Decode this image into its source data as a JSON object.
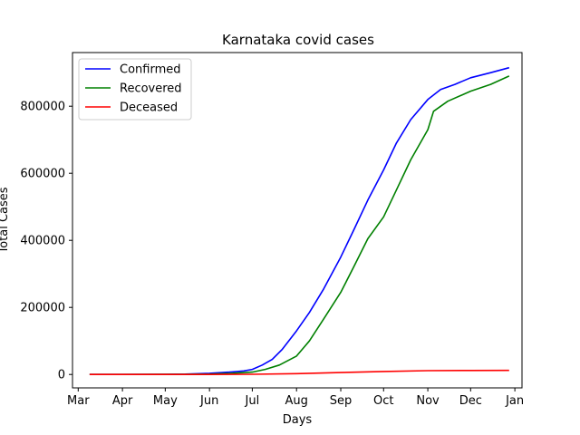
{
  "chart_data": {
    "type": "line",
    "title": "Karnataka covid cases",
    "xlabel": "Days",
    "ylabel": "Total Cases",
    "xlim": [
      "2020-02-26",
      "2021-01-06"
    ],
    "ylim": [
      -40000,
      960000
    ],
    "x_ticks": [
      "2020-03-01",
      "2020-04-01",
      "2020-05-01",
      "2020-06-01",
      "2020-07-01",
      "2020-08-01",
      "2020-09-01",
      "2020-10-01",
      "2020-11-01",
      "2020-12-01",
      "2021-01-01"
    ],
    "x_tick_labels": [
      "Mar",
      "Apr",
      "May",
      "Jun",
      "Jul",
      "Aug",
      "Sep",
      "Oct",
      "Nov",
      "Dec",
      "Jan"
    ],
    "y_ticks": [
      0,
      200000,
      400000,
      600000,
      800000
    ],
    "y_tick_labels": [
      "0",
      "200000",
      "400000",
      "600000",
      "800000"
    ],
    "grid": false,
    "legend_position": "top-left",
    "series": [
      {
        "name": "Confirmed",
        "color": "#0000ff",
        "points": [
          [
            "2020-03-09",
            0
          ],
          [
            "2020-04-01",
            110
          ],
          [
            "2020-05-01",
            590
          ],
          [
            "2020-05-15",
            990
          ],
          [
            "2020-06-01",
            3400
          ],
          [
            "2020-06-15",
            7000
          ],
          [
            "2020-06-25",
            10500
          ],
          [
            "2020-07-01",
            15000
          ],
          [
            "2020-07-08",
            28000
          ],
          [
            "2020-07-15",
            45000
          ],
          [
            "2020-07-22",
            75000
          ],
          [
            "2020-08-01",
            130000
          ],
          [
            "2020-08-10",
            185000
          ],
          [
            "2020-08-20",
            255000
          ],
          [
            "2020-09-01",
            350000
          ],
          [
            "2020-09-10",
            430000
          ],
          [
            "2020-09-20",
            520000
          ],
          [
            "2020-10-01",
            610000
          ],
          [
            "2020-10-10",
            690000
          ],
          [
            "2020-10-20",
            760000
          ],
          [
            "2020-11-01",
            820000
          ],
          [
            "2020-11-10",
            850000
          ],
          [
            "2020-11-20",
            865000
          ],
          [
            "2020-12-01",
            885000
          ],
          [
            "2020-12-15",
            900000
          ],
          [
            "2020-12-28",
            915000
          ]
        ]
      },
      {
        "name": "Recovered",
        "color": "#008000",
        "points": [
          [
            "2020-03-09",
            0
          ],
          [
            "2020-04-01",
            20
          ],
          [
            "2020-05-01",
            300
          ],
          [
            "2020-05-15",
            500
          ],
          [
            "2020-06-01",
            1200
          ],
          [
            "2020-06-15",
            3000
          ],
          [
            "2020-07-01",
            7000
          ],
          [
            "2020-07-10",
            15000
          ],
          [
            "2020-07-20",
            28000
          ],
          [
            "2020-08-01",
            55000
          ],
          [
            "2020-08-10",
            100000
          ],
          [
            "2020-08-20",
            165000
          ],
          [
            "2020-09-01",
            245000
          ],
          [
            "2020-09-10",
            320000
          ],
          [
            "2020-09-20",
            405000
          ],
          [
            "2020-10-01",
            470000
          ],
          [
            "2020-10-10",
            550000
          ],
          [
            "2020-10-20",
            640000
          ],
          [
            "2020-11-01",
            730000
          ],
          [
            "2020-11-05",
            785000
          ],
          [
            "2020-11-15",
            815000
          ],
          [
            "2020-12-01",
            845000
          ],
          [
            "2020-12-15",
            865000
          ],
          [
            "2020-12-28",
            890000
          ]
        ]
      },
      {
        "name": "Deceased",
        "color": "#ff0000",
        "points": [
          [
            "2020-03-09",
            0
          ],
          [
            "2020-05-01",
            30
          ],
          [
            "2020-06-01",
            60
          ],
          [
            "2020-07-01",
            500
          ],
          [
            "2020-08-01",
            2300
          ],
          [
            "2020-09-01",
            5800
          ],
          [
            "2020-10-01",
            9000
          ],
          [
            "2020-11-01",
            11300
          ],
          [
            "2020-12-01",
            11900
          ],
          [
            "2020-12-28",
            12100
          ]
        ]
      }
    ]
  }
}
